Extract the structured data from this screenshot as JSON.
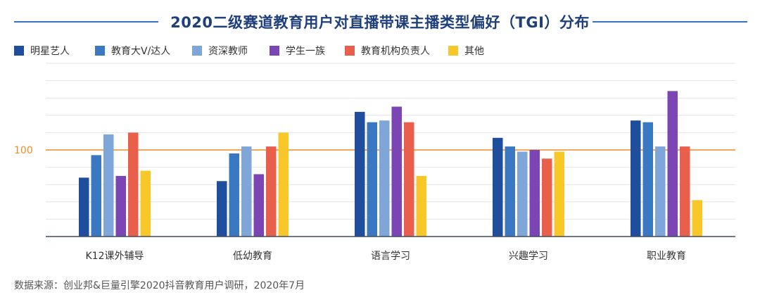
{
  "title": "2020二级赛道教育用户对直播带课主播类型偏好（TGI）分布",
  "source": "数据来源：创业邦&巨量引擎2020抖音教育用户调研，2020年7月",
  "chart_data": {
    "type": "bar",
    "title": "2020二级赛道教育用户对直播带课主播类型偏好（TGI）分布",
    "xlabel": "",
    "ylabel": "",
    "categories": [
      "K12课外辅导",
      "低幼教育",
      "语言学习",
      "兴趣学习",
      "职业教育"
    ],
    "reference_line": {
      "value": 100,
      "label": "100",
      "color": "#f08c2a"
    },
    "ylim": [
      50,
      150
    ],
    "grid": true,
    "legend_position": "top-left",
    "series": [
      {
        "name": "明星艺人",
        "color": "#1f4e9c",
        "values": [
          84,
          82,
          122,
          107,
          117
        ]
      },
      {
        "name": "教育大V/达人",
        "color": "#3a78c2",
        "values": [
          97,
          98,
          116,
          102,
          116
        ]
      },
      {
        "name": "资深教师",
        "color": "#7ea6d8",
        "values": [
          109,
          102,
          117,
          99,
          102
        ]
      },
      {
        "name": "学生一族",
        "color": "#7b46b4",
        "values": [
          85,
          86,
          125,
          100,
          134
        ]
      },
      {
        "name": "教育机构负责人",
        "color": "#e8604c",
        "values": [
          110,
          102,
          116,
          95,
          102
        ]
      },
      {
        "name": "其他",
        "color": "#f8c72a",
        "values": [
          88,
          110,
          85,
          99,
          71
        ]
      }
    ]
  }
}
